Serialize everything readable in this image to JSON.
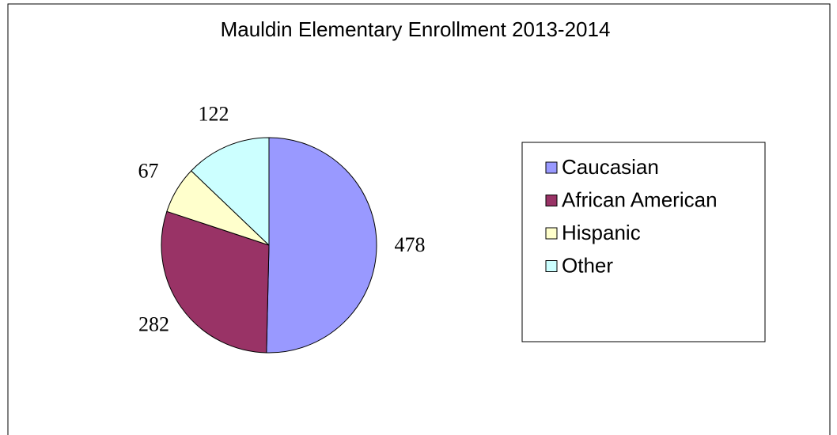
{
  "chart_data": {
    "type": "pie",
    "title": "Mauldin Elementary Enrollment 2013-2014",
    "categories": [
      "Caucasian",
      "African American",
      "Hispanic",
      "Other"
    ],
    "values": [
      478,
      282,
      67,
      122
    ],
    "colors": [
      "#9999ff",
      "#993366",
      "#ffffcc",
      "#ccffff"
    ],
    "legend": "right"
  }
}
